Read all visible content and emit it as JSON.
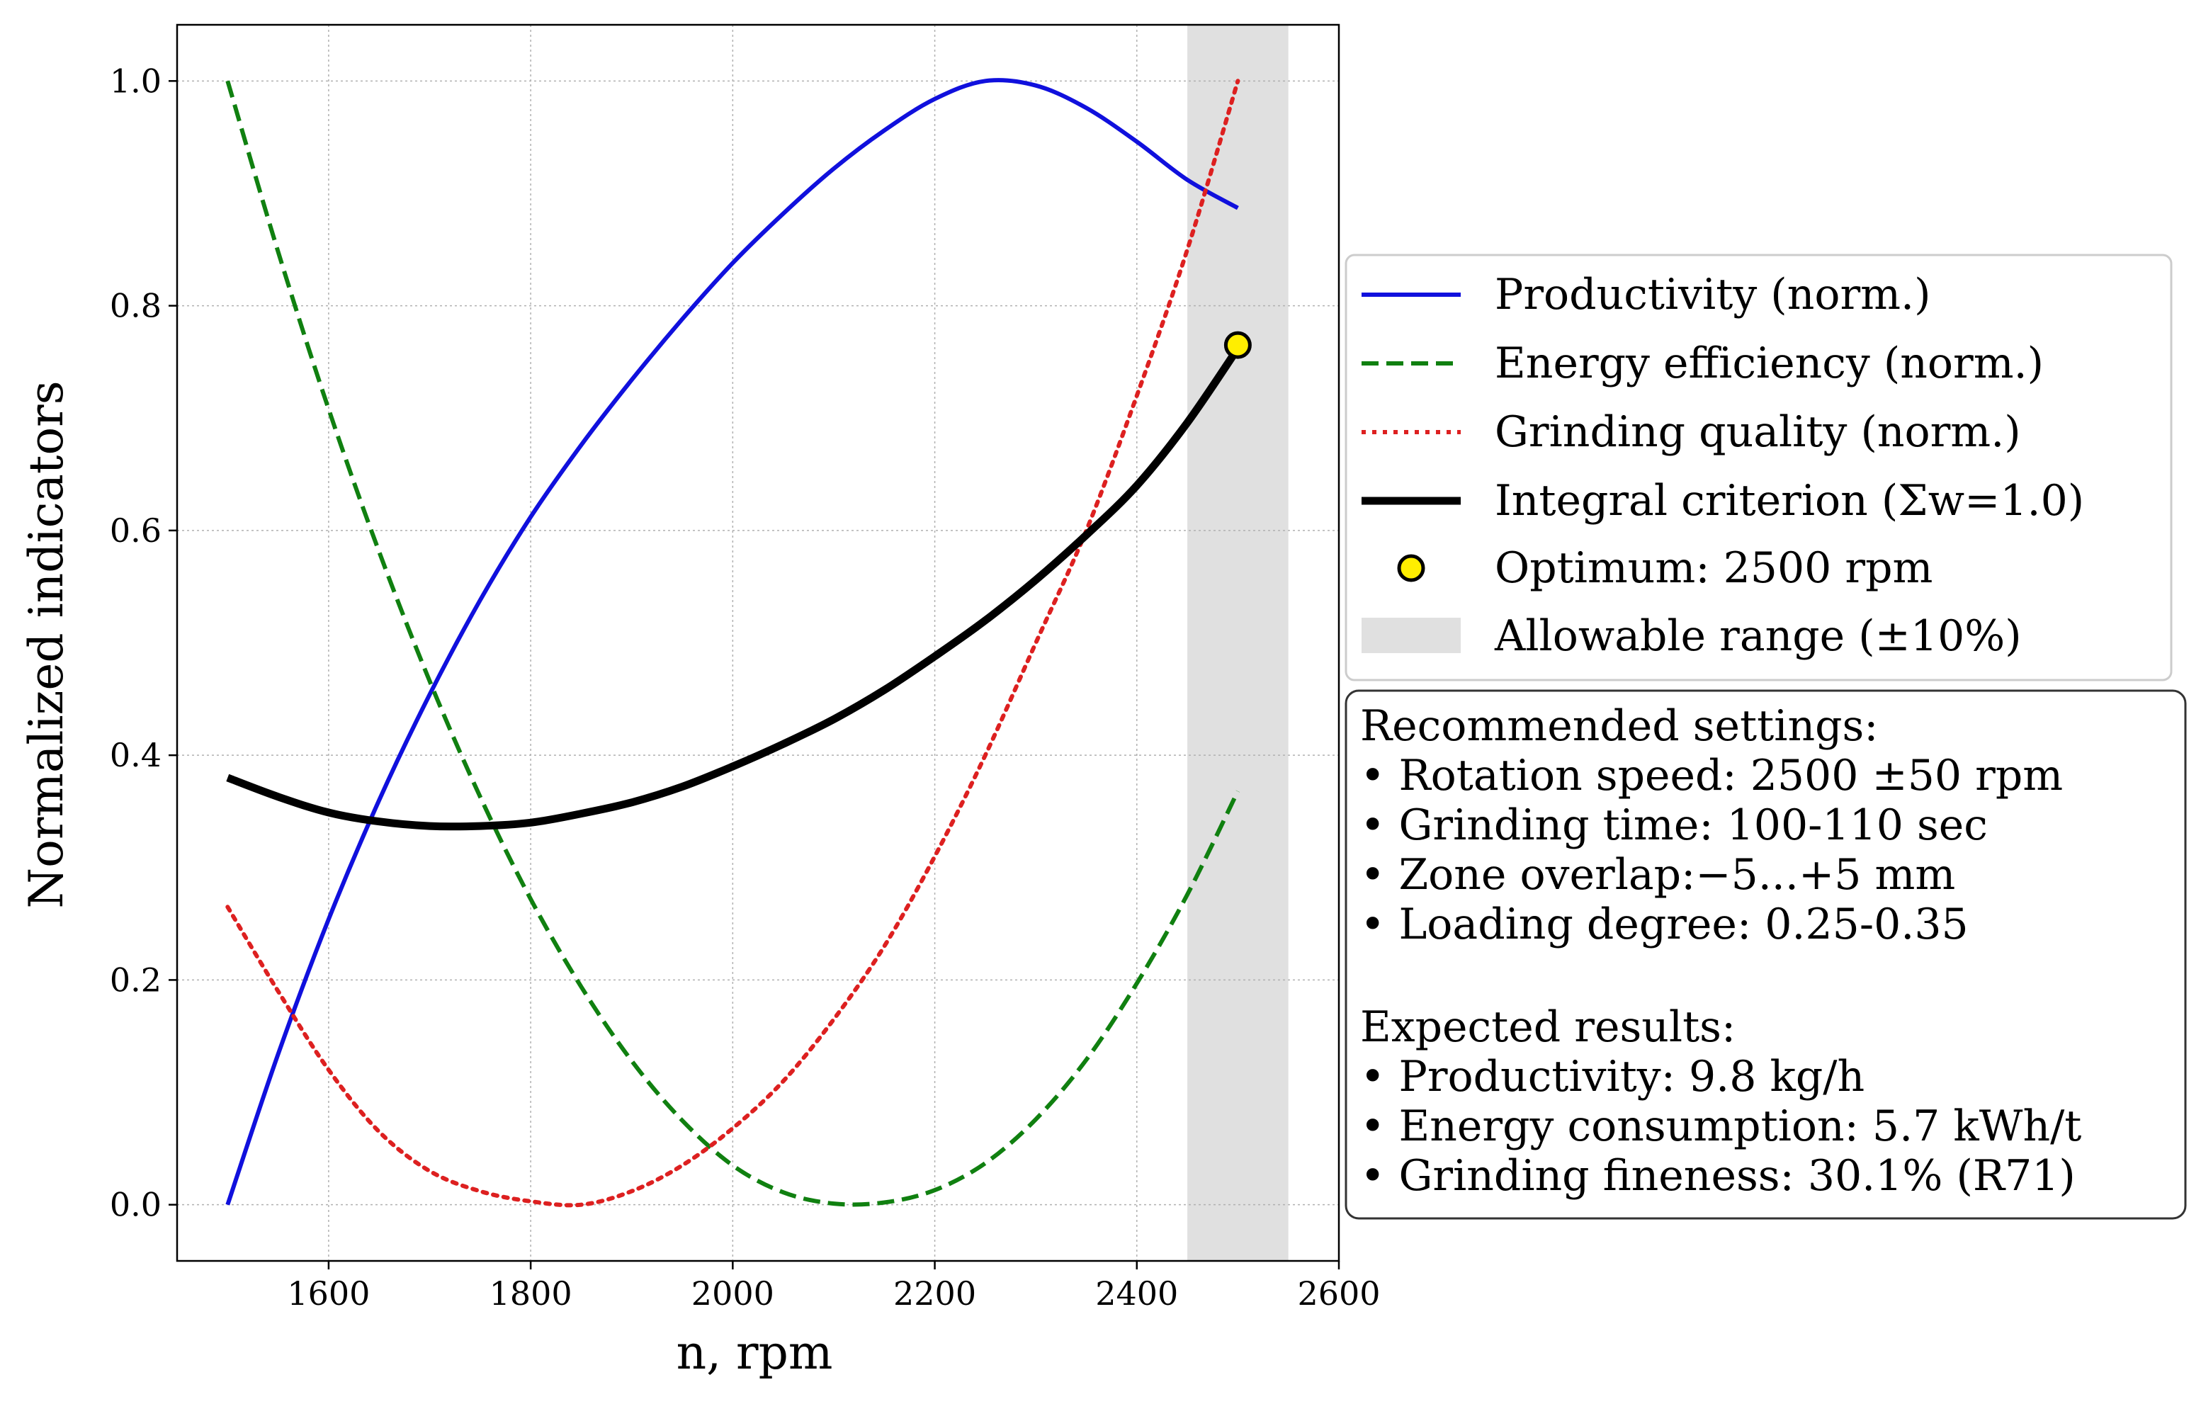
{
  "chart_data": {
    "type": "line",
    "xlabel": "n, rpm",
    "ylabel": "Normalized indicators",
    "xlim": [
      1450,
      2600
    ],
    "ylim": [
      -0.05,
      1.05
    ],
    "xticks": [
      1600,
      1800,
      2000,
      2200,
      2400,
      2600
    ],
    "yticks": [
      0.0,
      0.2,
      0.4,
      0.6,
      0.8,
      1.0
    ],
    "xtick_labels": [
      "1600",
      "1800",
      "2000",
      "2200",
      "2400",
      "2600"
    ],
    "ytick_labels": [
      "0.0",
      "0.2",
      "0.4",
      "0.6",
      "0.8",
      "1.0"
    ],
    "grid": true,
    "allowable_range": {
      "label": "Allowable range (±10%)",
      "x": [
        2450,
        2550
      ],
      "color": "#e0e0e0"
    },
    "series": [
      {
        "name": "Productivity (norm.)",
        "style": "solid",
        "color": "#1010dd",
        "x": [
          1500,
          1550,
          1600,
          1650,
          1700,
          1750,
          1800,
          1850,
          1900,
          1950,
          2000,
          2050,
          2100,
          2150,
          2200,
          2250,
          2300,
          2350,
          2400,
          2450,
          2500
        ],
        "values": [
          0.0,
          0.134,
          0.254,
          0.36,
          0.454,
          0.538,
          0.612,
          0.676,
          0.734,
          0.788,
          0.838,
          0.882,
          0.922,
          0.956,
          0.984,
          1.0,
          0.996,
          0.976,
          0.946,
          0.912,
          0.887
        ]
      },
      {
        "name": "Energy efficiency (norm.)",
        "style": "dashed",
        "color": "#108010",
        "x": [
          1500,
          1550,
          1600,
          1650,
          1700,
          1750,
          1800,
          1850,
          1900,
          1950,
          2000,
          2050,
          2100,
          2150,
          2200,
          2250,
          2300,
          2350,
          2400,
          2450,
          2500
        ],
        "values": [
          1.0,
          0.848,
          0.708,
          0.581,
          0.466,
          0.363,
          0.272,
          0.194,
          0.128,
          0.075,
          0.035,
          0.011,
          0.001,
          0.002,
          0.013,
          0.037,
          0.076,
          0.129,
          0.197,
          0.276,
          0.368
        ]
      },
      {
        "name": "Grinding quality (norm.)",
        "style": "dotted",
        "color": "#dd2020",
        "x": [
          1500,
          1550,
          1600,
          1650,
          1700,
          1750,
          1800,
          1850,
          1900,
          1950,
          2000,
          2050,
          2100,
          2150,
          2200,
          2250,
          2300,
          2350,
          2400,
          2450,
          2500
        ],
        "values": [
          0.265,
          0.19,
          0.12,
          0.065,
          0.03,
          0.012,
          0.003,
          0.0,
          0.012,
          0.035,
          0.068,
          0.11,
          0.165,
          0.23,
          0.31,
          0.4,
          0.5,
          0.6,
          0.72,
          0.85,
          1.0
        ]
      },
      {
        "name": "Integral criterion (Σw=1.0)",
        "style": "solid-thick",
        "color": "#000000",
        "x": [
          1500,
          1550,
          1600,
          1650,
          1700,
          1750,
          1800,
          1850,
          1900,
          1950,
          2000,
          2050,
          2100,
          2150,
          2200,
          2250,
          2300,
          2350,
          2400,
          2450,
          2500
        ],
        "values": [
          0.38,
          0.363,
          0.349,
          0.341,
          0.337,
          0.337,
          0.34,
          0.348,
          0.358,
          0.372,
          0.39,
          0.41,
          0.432,
          0.458,
          0.488,
          0.52,
          0.556,
          0.596,
          0.64,
          0.696,
          0.762
        ]
      }
    ],
    "optimum": {
      "name": "Optimum: 2500 rpm",
      "x": 2500,
      "y": 0.765,
      "color": "#ffee00"
    }
  },
  "legend": {
    "entries": [
      "Productivity (norm.)",
      "Energy efficiency (norm.)",
      "Grinding quality (norm.)",
      "Integral criterion (Σw=1.0)",
      "Optimum: 2500 rpm",
      "Allowable range (±10%)"
    ],
    "placement": "right"
  },
  "info_box": {
    "lines": [
      "Recommended settings:",
      "• Rotation speed: 2500 ±50 rpm",
      "• Grinding time: 100-110 sec",
      "• Zone overlap:−5...+5 mm",
      "• Loading degree: 0.25-0.35",
      "",
      "Expected results:",
      "• Productivity: 9.8 kg/h",
      "• Energy consumption: 5.7 kWh/t",
      "• Grinding fineness: 30.1% (R71)"
    ]
  }
}
